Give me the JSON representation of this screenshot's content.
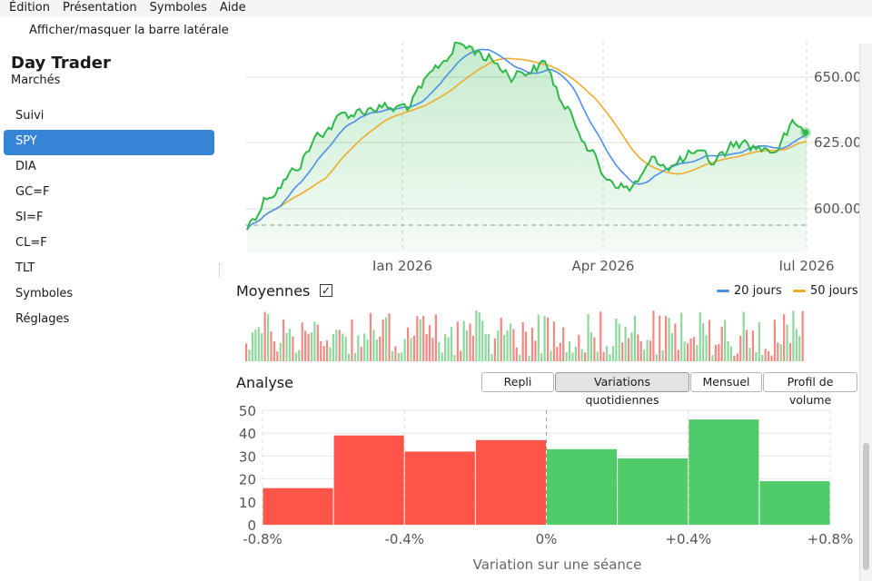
{
  "menu": [
    "Édition",
    "Présentation",
    "Symboles",
    "Aide"
  ],
  "toolbar": {
    "toggle_sidebar": "Afficher/masquer la barre latérale"
  },
  "sidebar": {
    "title": "Day Trader",
    "subtitle": "Marchés",
    "items": [
      "Suivi",
      "SPY",
      "DIA",
      "GC=F",
      "SI=F",
      "CL=F",
      "TLT",
      "Symboles",
      "Réglages"
    ],
    "selected": "SPY"
  },
  "colors": {
    "accent": "#3584d6",
    "price": "#2fb84a",
    "ma20": "#4d8fe8",
    "ma50": "#f0ab2a",
    "up": "#4fcb6a",
    "down": "#ff5449"
  },
  "price_chart": {
    "x_ticks": [
      "Ian 2026",
      "Apr 2026",
      "Iul 2026"
    ],
    "y_ticks": [
      "650.00",
      "625.00",
      "600.00"
    ],
    "last_value_marker": "current"
  },
  "moyennes": {
    "label": "Moyennes",
    "checked": "✓",
    "legend": [
      {
        "name": "20 jours",
        "color": "#4d8fe8"
      },
      {
        "name": "50 jours",
        "color": "#f0ab2a"
      }
    ]
  },
  "analyse": {
    "label": "Analyse",
    "buttons": [
      "Repli",
      "Variations quotidiennes",
      "Mensuel",
      "Profil de volume"
    ],
    "active": "Variations quotidiennes"
  },
  "chart_data": {
    "type": "bar",
    "categories": [
      "-0.8%",
      "-0.6%",
      "-0.4%",
      "-0.2%",
      "0%",
      "+0.2%",
      "+0.4%",
      "+0.6%"
    ],
    "values": [
      16,
      39,
      32,
      37,
      33,
      29,
      46,
      19
    ],
    "colors": [
      "down",
      "down",
      "down",
      "down",
      "up",
      "up",
      "up",
      "up"
    ],
    "xlabel": "Variation sur une séance",
    "x_tick_labels": [
      "-0.8%",
      "-0.4%",
      "0%",
      "+0.4%",
      "+0.8%"
    ],
    "y_tick_labels": [
      "0",
      "10",
      "20",
      "30",
      "40",
      "50"
    ],
    "ylim": [
      0,
      50
    ],
    "grid": true
  }
}
